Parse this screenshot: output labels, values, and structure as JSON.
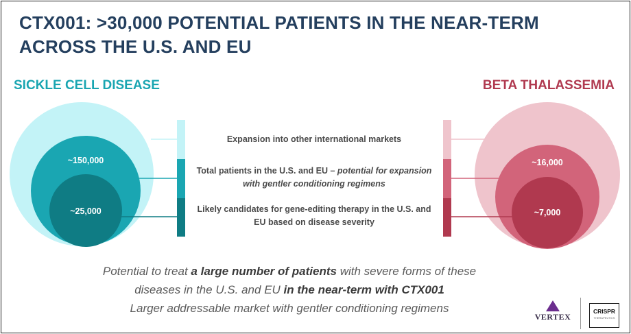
{
  "title_line1": "CTX001: >30,000 POTENTIAL PATIENTS IN THE NEAR-TERM",
  "title_line2": "ACROSS THE U.S. AND EU",
  "left_heading": "SICKLE CELL DISEASE",
  "right_heading": "BETA THALASSEMIA",
  "left_values": {
    "middle": "~150,000",
    "inner": "~25,000"
  },
  "right_values": {
    "middle": "~16,000",
    "inner": "~7,000"
  },
  "legend": {
    "outer": "Expansion into other international markets",
    "middle_prefix": "Total patients in the U.S. and EU – ",
    "middle_italic": "potential for expansion with gentler conditioning regimens",
    "inner": "Likely candidates for gene-editing therapy in the U.S. and EU based on disease severity"
  },
  "footer": {
    "line1_a": "Potential to treat ",
    "line1_b": "a large number of patients",
    "line1_c": " with severe forms of these",
    "line2_a": "diseases in the U.S. and EU ",
    "line2_b": "in the near-term with CTX001",
    "line3": "Larger addressable market with gentler conditioning regimens"
  },
  "logos": {
    "vertex": "VERTEX",
    "crispr": "CRISPR",
    "crispr_sub": "THERAPEUTICS"
  },
  "colors": {
    "title": "#243f5e",
    "scd_outer": "#c3f3f7",
    "scd_middle": "#1aa6b2",
    "scd_inner": "#0f7c84",
    "bt_outer": "#efc4cc",
    "bt_middle": "#d2647a",
    "bt_inner": "#b0394f"
  }
}
